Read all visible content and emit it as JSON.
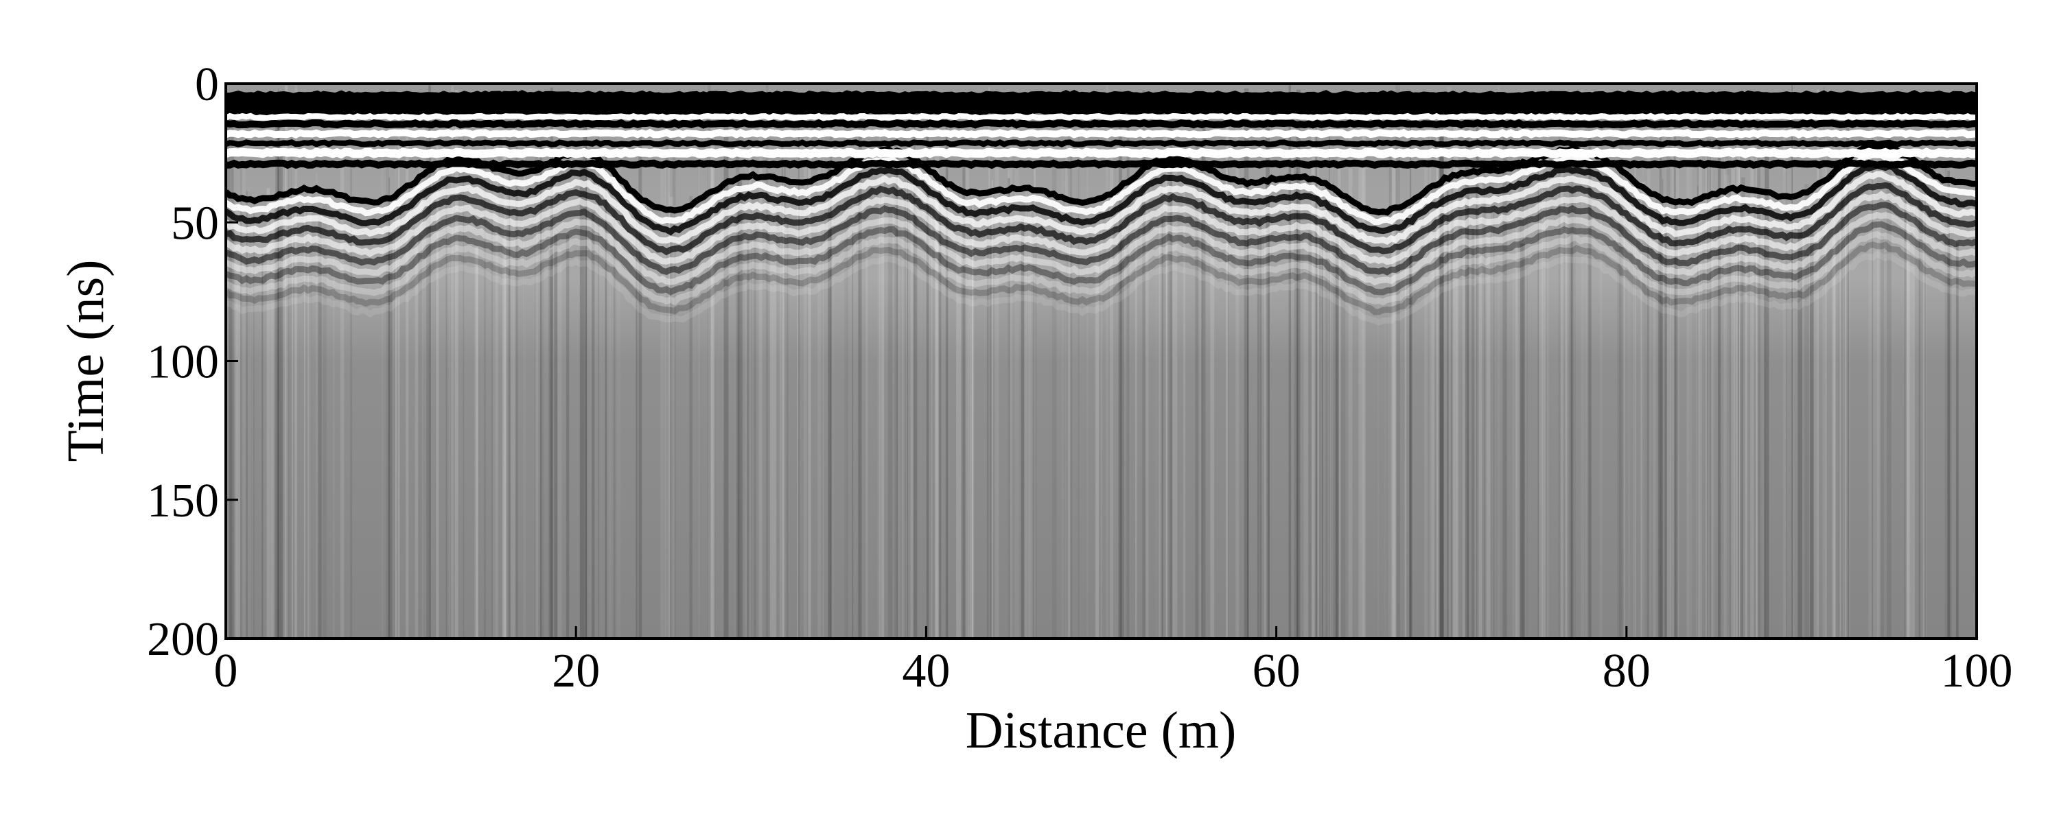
{
  "chart_data": {
    "type": "radargram",
    "xlabel": "Distance (m)",
    "ylabel": "Time (ns)",
    "xlim": [
      0,
      100
    ],
    "xticks": [
      0,
      20,
      40,
      60,
      80,
      100
    ],
    "ylim": [
      200,
      0
    ],
    "yticks": [
      0,
      50,
      100,
      150,
      200
    ],
    "colormap": "gray"
  }
}
